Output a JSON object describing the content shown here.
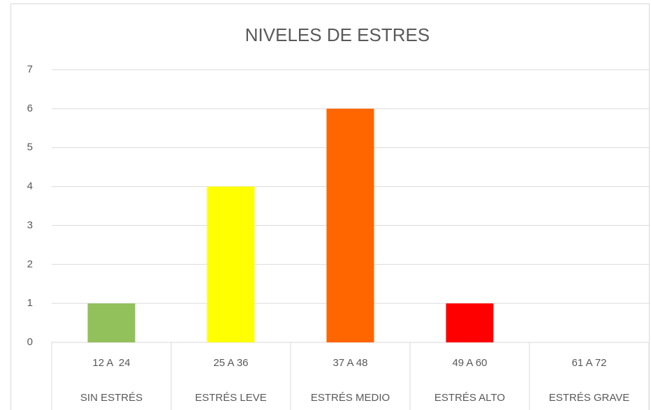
{
  "chart_data": {
    "type": "bar",
    "title": "NIVELES DE ESTRES",
    "categories": [
      "12 A  24",
      "25 A 36",
      "37 A 48",
      "49 A 60",
      "61 A 72"
    ],
    "category_groups": [
      "SIN ESTRÉS",
      "ESTRÉS LEVE",
      "ESTRÉS MEDIO",
      "ESTRÉS ALTO",
      "ESTRÉS GRAVE"
    ],
    "values": [
      1,
      4,
      6,
      1,
      0
    ],
    "colors": [
      "#92c05a",
      "#ffff00",
      "#ff6600",
      "#ff0000",
      "#7f7f7f"
    ],
    "ylim": [
      0,
      7
    ],
    "yticks": [
      0,
      1,
      2,
      3,
      4,
      5,
      6,
      7
    ],
    "grid": true
  }
}
